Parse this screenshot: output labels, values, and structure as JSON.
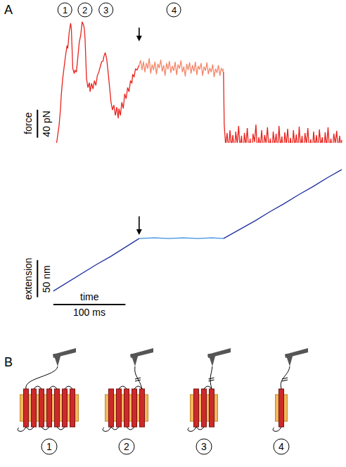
{
  "chart_data": {
    "type": "line",
    "panel": "A",
    "tick_labels": false,
    "grid": false,
    "series": [
      {
        "axis": "y",
        "color": "#e8231e",
        "x": [
          0,
          3,
          6,
          8,
          10,
          11,
          13,
          15,
          17,
          19,
          20,
          22,
          24,
          25,
          26,
          27,
          29,
          30,
          32,
          34,
          36,
          38,
          40,
          42,
          43,
          44,
          45,
          46,
          48,
          50,
          51,
          53,
          55,
          57,
          59,
          61,
          63,
          65,
          67,
          69,
          70,
          72,
          74,
          76,
          78,
          80,
          82,
          84,
          86,
          88,
          90,
          91,
          93,
          95,
          97,
          99,
          101,
          103,
          105,
          107,
          109,
          110,
          112,
          114,
          116,
          119
        ],
        "values": [
          0,
          21,
          45,
          59,
          83,
          102,
          126,
          145,
          159,
          173,
          169,
          192,
          205,
          197,
          169,
          140,
          133,
          138,
          135,
          159,
          178,
          188,
          207,
          202,
          197,
          183,
          150,
          126,
          113,
          120,
          107,
          119,
          111,
          123,
          116,
          130,
          135,
          142,
          150,
          151,
          157,
          163,
          154,
          135,
          111,
          92,
          81,
          88,
          73,
          85,
          69,
          83,
          73,
          92,
          83,
          104,
          97,
          113,
          107,
          123,
          119,
          132,
          128,
          140,
          138,
          145
        ]
      },
      {
        "axis": "y",
        "color": "#f4876a",
        "x": [
          119,
          121,
          123,
          125,
          127,
          129,
          131,
          133,
          135,
          137,
          139,
          141,
          143,
          145,
          147,
          149,
          151,
          153,
          155,
          157,
          159,
          161,
          163,
          165,
          167,
          169,
          171,
          173,
          175,
          177,
          179,
          181,
          183,
          185,
          187,
          189,
          191,
          193,
          195,
          197,
          199,
          201,
          203,
          205,
          207,
          209,
          211,
          213,
          215,
          217,
          219,
          221,
          223,
          225,
          227,
          229,
          231,
          233,
          235,
          236
        ],
        "values": [
          145,
          152,
          138,
          150,
          135,
          148,
          140,
          155,
          133,
          146,
          138,
          150,
          132,
          147,
          141,
          153,
          136,
          145,
          130,
          148,
          139,
          151,
          134,
          144,
          137,
          150,
          131,
          146,
          140,
          152,
          135,
          143,
          129,
          147,
          138,
          149,
          133,
          145,
          136,
          150,
          131,
          144,
          139,
          148,
          130,
          143,
          137,
          149,
          132,
          141,
          135,
          146,
          128,
          140,
          134,
          145,
          130,
          141,
          136,
          140
        ]
      },
      {
        "axis": "y",
        "color": "#e8231e",
        "x": [
          236,
          237,
          239,
          241,
          243,
          245,
          247,
          249,
          251,
          253,
          255,
          257,
          259,
          261,
          263,
          265,
          267,
          269,
          271,
          273,
          275,
          277,
          279,
          281,
          283,
          285,
          287,
          289,
          291,
          293,
          295,
          297,
          299,
          301,
          303,
          305,
          307,
          309,
          311,
          313,
          315,
          317,
          319,
          321,
          323,
          325,
          327,
          329,
          331,
          333,
          335,
          337,
          339,
          341,
          343,
          345,
          347,
          349,
          351,
          353,
          355,
          357,
          359,
          361,
          363,
          365,
          367,
          369,
          371,
          373,
          375,
          377,
          379,
          381,
          383,
          385,
          387,
          389,
          391,
          393,
          395,
          397,
          399,
          400
        ],
        "values": [
          136,
          60,
          30,
          48,
          22,
          52,
          28,
          45,
          18,
          50,
          32,
          58,
          25,
          44,
          15,
          48,
          30,
          55,
          22,
          40,
          12,
          47,
          35,
          60,
          20,
          42,
          28,
          52,
          18,
          45,
          33,
          56,
          24,
          40,
          16,
          50,
          30,
          47,
          21,
          58,
          27,
          43,
          14,
          49,
          31,
          54,
          23,
          41,
          17,
          52,
          29,
          46,
          20,
          57,
          26,
          44,
          13,
          48,
          32,
          55,
          22,
          39,
          18,
          50,
          28,
          45,
          21,
          53,
          30,
          42,
          15,
          49,
          27,
          56,
          24,
          40,
          19,
          47,
          33,
          51,
          22,
          44,
          26,
          38
        ]
      },
      {
        "axis": "y2",
        "color": "#1e2f9e",
        "x": [
          0,
          20,
          40,
          60,
          80,
          100,
          119
        ],
        "values": [
          0,
          12,
          24,
          36,
          47,
          59,
          71
        ]
      },
      {
        "axis": "y2",
        "color": "#3a8fe0",
        "x": [
          119,
          140,
          160,
          180,
          200,
          220,
          236
        ],
        "values": [
          71,
          72,
          71,
          72,
          71,
          72,
          71
        ]
      },
      {
        "axis": "y2",
        "color": "#1e2f9e",
        "x": [
          236,
          260,
          280,
          300,
          320,
          340,
          360,
          380,
          400
        ],
        "values": [
          71,
          84,
          95,
          107,
          118,
          130,
          141,
          153,
          164
        ]
      }
    ],
    "scale_bars": [
      {
        "axis": "y",
        "quantity": "force",
        "value": 40,
        "label": "40 pN"
      },
      {
        "axis": "y2",
        "quantity": "extension",
        "value": 50,
        "label": "50 nm"
      },
      {
        "axis": "x",
        "quantity": "time",
        "value": 100,
        "label": "100 ms"
      }
    ],
    "annotations": [
      {
        "text": "1",
        "x": 16
      },
      {
        "text": "2",
        "x": 44
      },
      {
        "text": "3",
        "x": 73
      },
      {
        "text": "4",
        "x": 167
      },
      {
        "arrow": true,
        "axis": "y",
        "x": 119
      },
      {
        "arrow": true,
        "axis": "y2",
        "x": 119
      }
    ]
  },
  "diagram": {
    "label": "B",
    "states": [
      {
        "label": "1",
        "helices": 7
      },
      {
        "label": "2",
        "helices": 5
      },
      {
        "label": "3",
        "helices": 3
      },
      {
        "label": "4",
        "helices": 1
      }
    ]
  }
}
